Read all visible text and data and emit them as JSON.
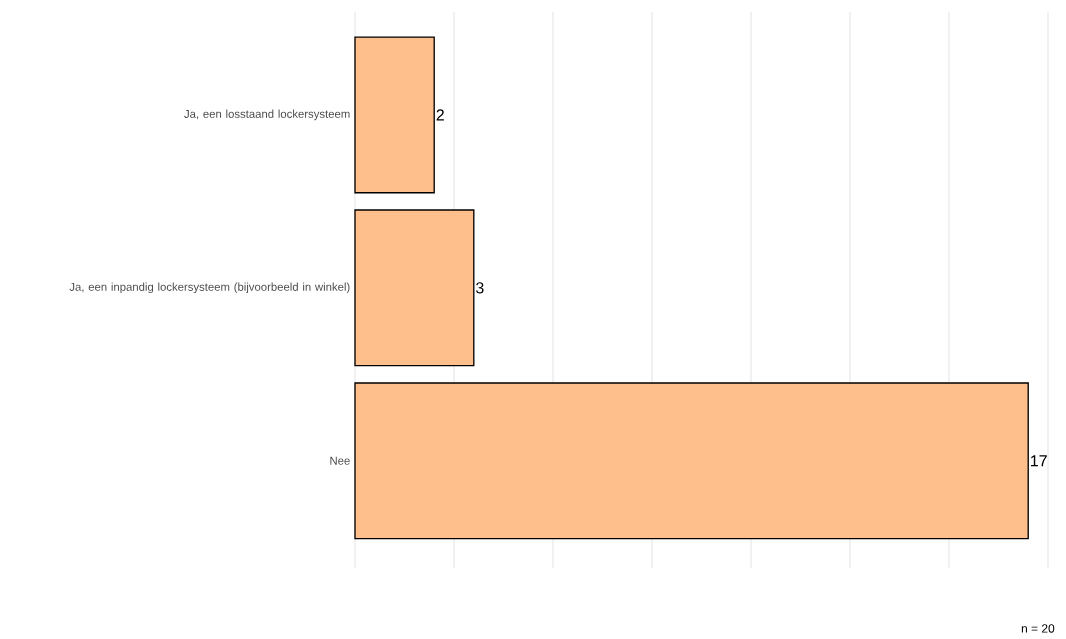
{
  "chart_data": {
    "type": "bar",
    "orientation": "horizontal",
    "categories": [
      "Ja, een losstaand lockersysteem",
      "Ja, een inpandig lockersysteem (bijvoorbeeld in winkel)",
      "Nee"
    ],
    "values": [
      2,
      3,
      17
    ],
    "color": "#ffbf8c",
    "xlim": [
      0,
      17.5
    ],
    "xticks": [
      {
        "value": 0,
        "label": null
      },
      {
        "value": 2.5,
        "label": null
      },
      {
        "value": 5,
        "label": null
      },
      {
        "value": 7.5,
        "label": null
      },
      {
        "value": 10,
        "label": null
      },
      {
        "value": 12.5,
        "label": null
      },
      {
        "value": 15,
        "label": null
      },
      {
        "value": 17.5,
        "label": null
      }
    ],
    "grid": "x",
    "tick_labels": "y",
    "data_labels": true,
    "annotations": [
      "n = 20"
    ]
  }
}
